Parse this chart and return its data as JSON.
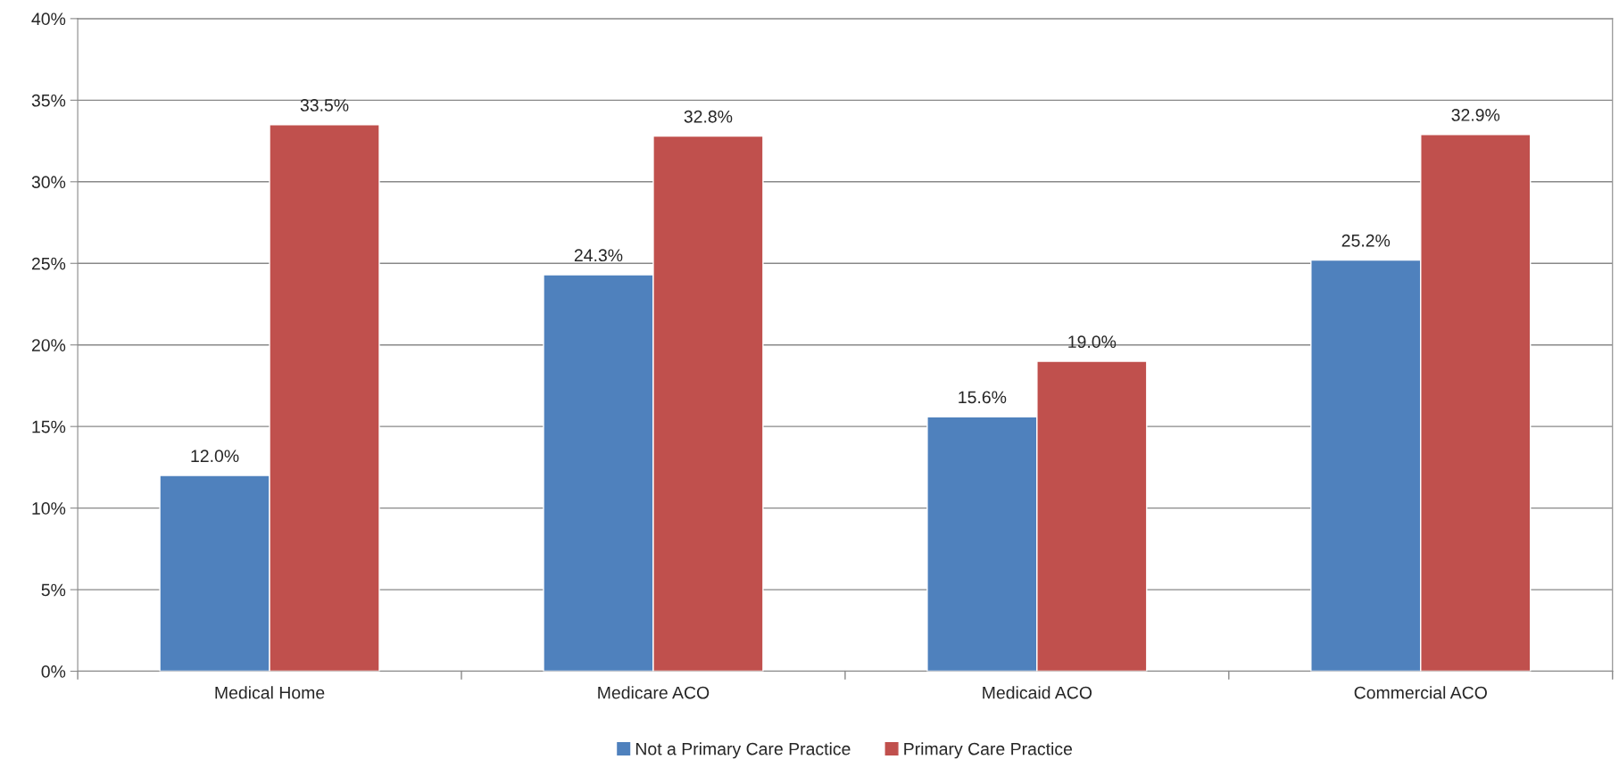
{
  "chart_data": {
    "type": "bar",
    "categories": [
      "Medical Home",
      "Medicare ACO",
      "Medicaid ACO",
      "Commercial ACO"
    ],
    "series": [
      {
        "name": "Not a Primary Care Practice",
        "color": "#4f81bd",
        "values": [
          12.0,
          24.3,
          15.6,
          25.2
        ],
        "value_labels": [
          "12.0%",
          "24.3%",
          "15.6%",
          "25.2%"
        ]
      },
      {
        "name": "Primary Care Practice",
        "color": "#c0504d",
        "values": [
          33.5,
          32.8,
          19.0,
          32.9
        ],
        "value_labels": [
          "33.5%",
          "32.8%",
          "19.0%",
          "32.9%"
        ]
      }
    ],
    "ylim": [
      0,
      40
    ],
    "yticks": [
      {
        "value": 0,
        "label": "0%"
      },
      {
        "value": 5,
        "label": "5%"
      },
      {
        "value": 10,
        "label": "10%"
      },
      {
        "value": 15,
        "label": "15%"
      },
      {
        "value": 20,
        "label": "20%"
      },
      {
        "value": 25,
        "label": "25%"
      },
      {
        "value": 30,
        "label": "30%"
      },
      {
        "value": 35,
        "label": "35%"
      },
      {
        "value": 40,
        "label": "40%"
      }
    ],
    "grid": "y",
    "legend": "bottom"
  }
}
